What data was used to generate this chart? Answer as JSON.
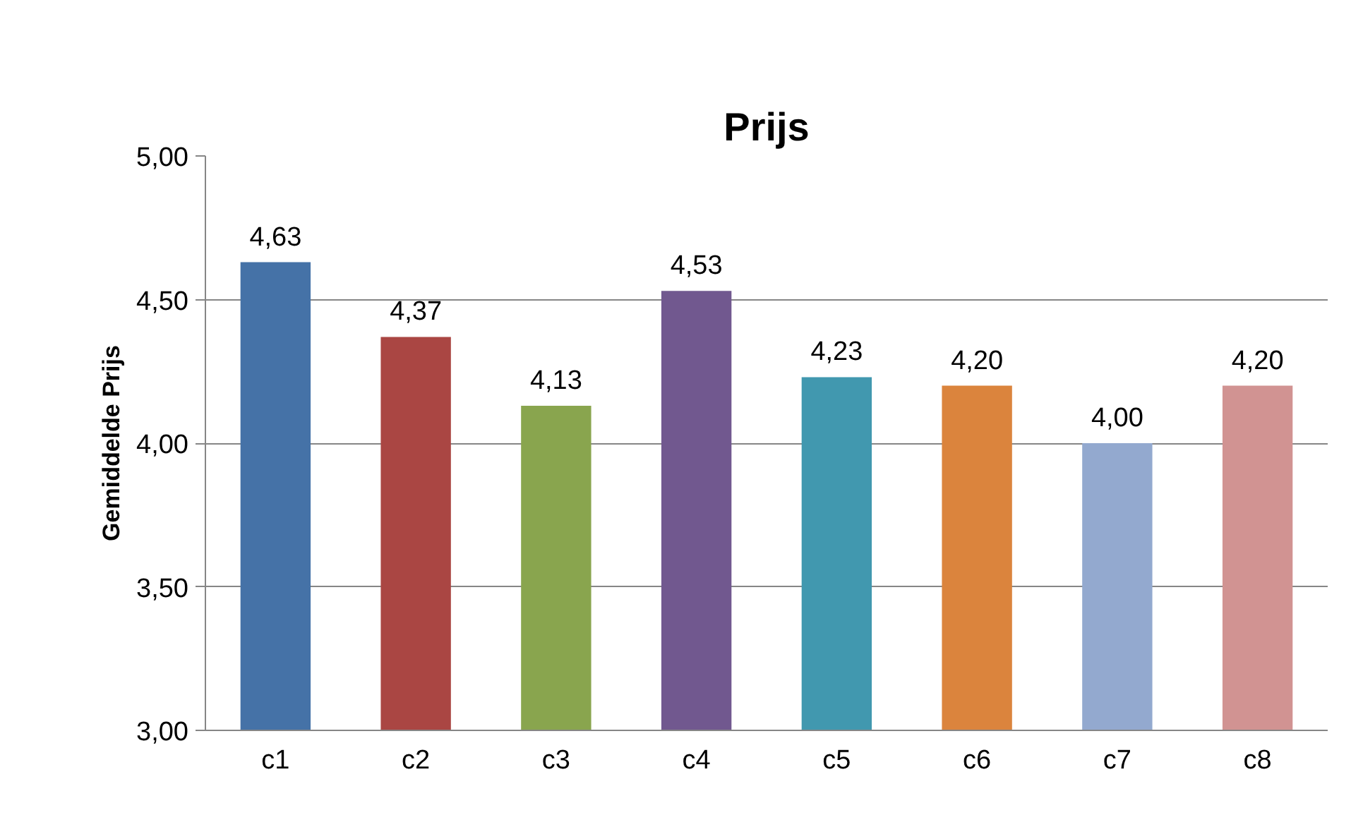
{
  "chart_data": {
    "type": "bar",
    "title": "Prijs",
    "ylabel": "Gemiddelde Prijs",
    "categories": [
      "c1",
      "c2",
      "c3",
      "c4",
      "c5",
      "c6",
      "c7",
      "c8"
    ],
    "values": [
      4.63,
      4.37,
      4.13,
      4.53,
      4.23,
      4.2,
      4.0,
      4.2
    ],
    "value_labels": [
      "4,63",
      "4,37",
      "4,13",
      "4,53",
      "4,23",
      "4,20",
      "4,00",
      "4,20"
    ],
    "colors": [
      "#4572a7",
      "#aa4643",
      "#89a54e",
      "#71588f",
      "#4198af",
      "#db843d",
      "#93a9cf",
      "#d19392"
    ],
    "ylim": [
      3,
      5
    ],
    "yticks": [
      {
        "value": 3,
        "label": "3,00"
      },
      {
        "value": 3.5,
        "label": "3,50"
      },
      {
        "value": 4,
        "label": "4,00"
      },
      {
        "value": 4.5,
        "label": "4,50"
      },
      {
        "value": 5,
        "label": "5,00"
      }
    ],
    "grid": "y"
  }
}
